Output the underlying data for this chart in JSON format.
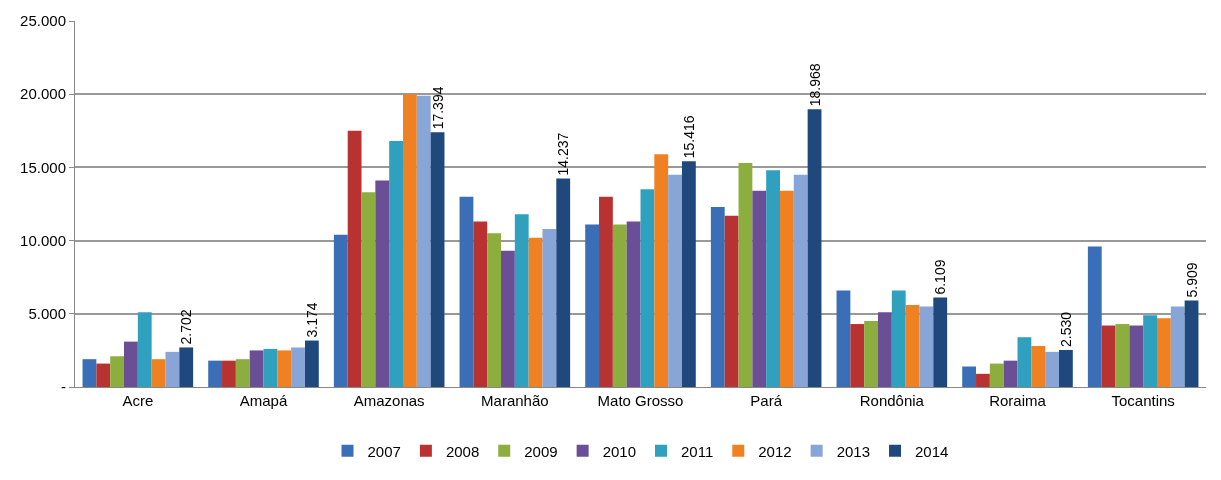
{
  "chart_data": {
    "type": "bar",
    "categories": [
      "Acre",
      "Amapá",
      "Amazonas",
      "Maranhão",
      "Mato Grosso",
      "Pará",
      "Rondônia",
      "Roraima",
      "Tocantins"
    ],
    "series": [
      {
        "name": "2007",
        "color": "#3a6fb8",
        "values": [
          1900,
          1800,
          10400,
          13000,
          11100,
          12300,
          6600,
          1400,
          9600
        ]
      },
      {
        "name": "2008",
        "color": "#b83232",
        "values": [
          1600,
          1800,
          17500,
          11300,
          13000,
          11700,
          4300,
          900,
          4200
        ]
      },
      {
        "name": "2009",
        "color": "#8bae3e",
        "values": [
          2100,
          1900,
          13300,
          10500,
          11100,
          15300,
          4500,
          1600,
          4300
        ]
      },
      {
        "name": "2010",
        "color": "#6b4f96",
        "values": [
          3100,
          2500,
          14100,
          9300,
          11300,
          13400,
          5100,
          1800,
          4200
        ]
      },
      {
        "name": "2011",
        "color": "#2fa0bd",
        "values": [
          5100,
          2600,
          16800,
          11800,
          13500,
          14800,
          6600,
          3400,
          4900
        ]
      },
      {
        "name": "2012",
        "color": "#ef8122",
        "values": [
          1900,
          2500,
          20000,
          10200,
          15900,
          13400,
          5600,
          2800,
          4700
        ]
      },
      {
        "name": "2013",
        "color": "#87a5d6",
        "values": [
          2400,
          2700,
          19900,
          10800,
          14500,
          14500,
          5500,
          2400,
          5500
        ]
      },
      {
        "name": "2014",
        "color": "#1f497d",
        "values": [
          2702,
          3174,
          17394,
          14237,
          15416,
          18968,
          6109,
          2530,
          5909
        ],
        "value_labels": [
          "2.702",
          "3.174",
          "17.394",
          "14.237",
          "15.416",
          "18.968",
          "6.109",
          "2.530",
          "5.909"
        ]
      }
    ],
    "ylim": [
      0,
      25000
    ],
    "yticks": [
      {
        "value": 0,
        "label": "-"
      },
      {
        "value": 5000,
        "label": "5.000"
      },
      {
        "value": 10000,
        "label": "10.000"
      },
      {
        "value": 15000,
        "label": "15.000"
      },
      {
        "value": 20000,
        "label": "20.000"
      },
      {
        "value": 25000,
        "label": "25.000"
      }
    ],
    "grid": "y",
    "legend": "bottom"
  }
}
